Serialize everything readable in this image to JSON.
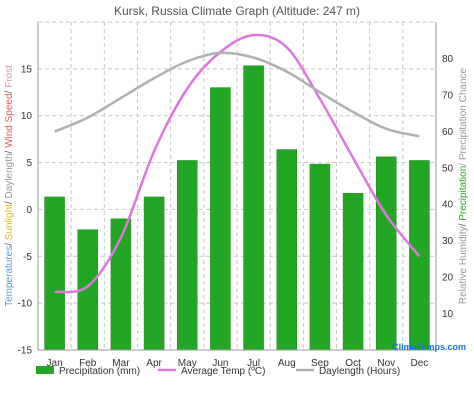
{
  "chart_data": {
    "type": "bar",
    "title": "Kursk, Russia Climate Graph (Altitude: 247 m)",
    "categories": [
      "Jan",
      "Feb",
      "Mar",
      "Apr",
      "May",
      "Jun",
      "Jul",
      "Aug",
      "Sep",
      "Oct",
      "Nov",
      "Dec"
    ],
    "left_axis": {
      "ylim": [
        -15,
        20
      ],
      "ticks": [
        -15,
        -10,
        -5,
        0,
        5,
        10,
        15
      ],
      "title_parts": [
        {
          "text": "Temperatures",
          "color": "#5b9bd5"
        },
        {
          "text": "/ ",
          "color": "#555555"
        },
        {
          "text": "Sunlight",
          "color": "#e0c020"
        },
        {
          "text": "/ ",
          "color": "#555555"
        },
        {
          "text": "Daylength",
          "color": "#999999"
        },
        {
          "text": "/ ",
          "color": "#555555"
        },
        {
          "text": "Wind Speed",
          "color": "#e06060"
        },
        {
          "text": "/ ",
          "color": "#555555"
        },
        {
          "text": "Frost",
          "color": "#d0a0a0"
        }
      ]
    },
    "right_axis": {
      "ylim": [
        0,
        90
      ],
      "ticks": [
        10,
        20,
        30,
        40,
        50,
        60,
        70,
        80
      ],
      "title_parts": [
        {
          "text": "Relative Humidity",
          "color": "#999999"
        },
        {
          "text": "/ ",
          "color": "#555555"
        },
        {
          "text": "Precipitation",
          "color": "#2aa52a"
        },
        {
          "text": "/ Precipitation Chance",
          "color": "#999999"
        }
      ]
    },
    "series": [
      {
        "name": "Precipitation (mm)",
        "type": "bar",
        "axis": "right",
        "color": "#23a623",
        "values": [
          42,
          33,
          36,
          42,
          52,
          72,
          78,
          55,
          51,
          43,
          53,
          52
        ]
      },
      {
        "name": "Average Temp (ºC)",
        "type": "line",
        "axis": "left",
        "color": "#dd77dd",
        "values": [
          -8.8,
          -8.2,
          -3.0,
          6.2,
          12.9,
          16.8,
          18.6,
          17.3,
          11.8,
          5.5,
          -0.6,
          -5.0
        ]
      },
      {
        "name": "Daylength (Hours)",
        "type": "line",
        "axis": "left",
        "color": "#b0b0b0",
        "values": [
          8.3,
          9.8,
          11.9,
          14.0,
          15.8,
          16.7,
          16.2,
          14.7,
          12.5,
          10.4,
          8.6,
          7.8
        ]
      }
    ],
    "legend_position": "bottom",
    "grid": true
  },
  "watermark": "ClimaTemps.com",
  "colors": {
    "grid": "#c8c8c8",
    "axis": "#999999"
  }
}
